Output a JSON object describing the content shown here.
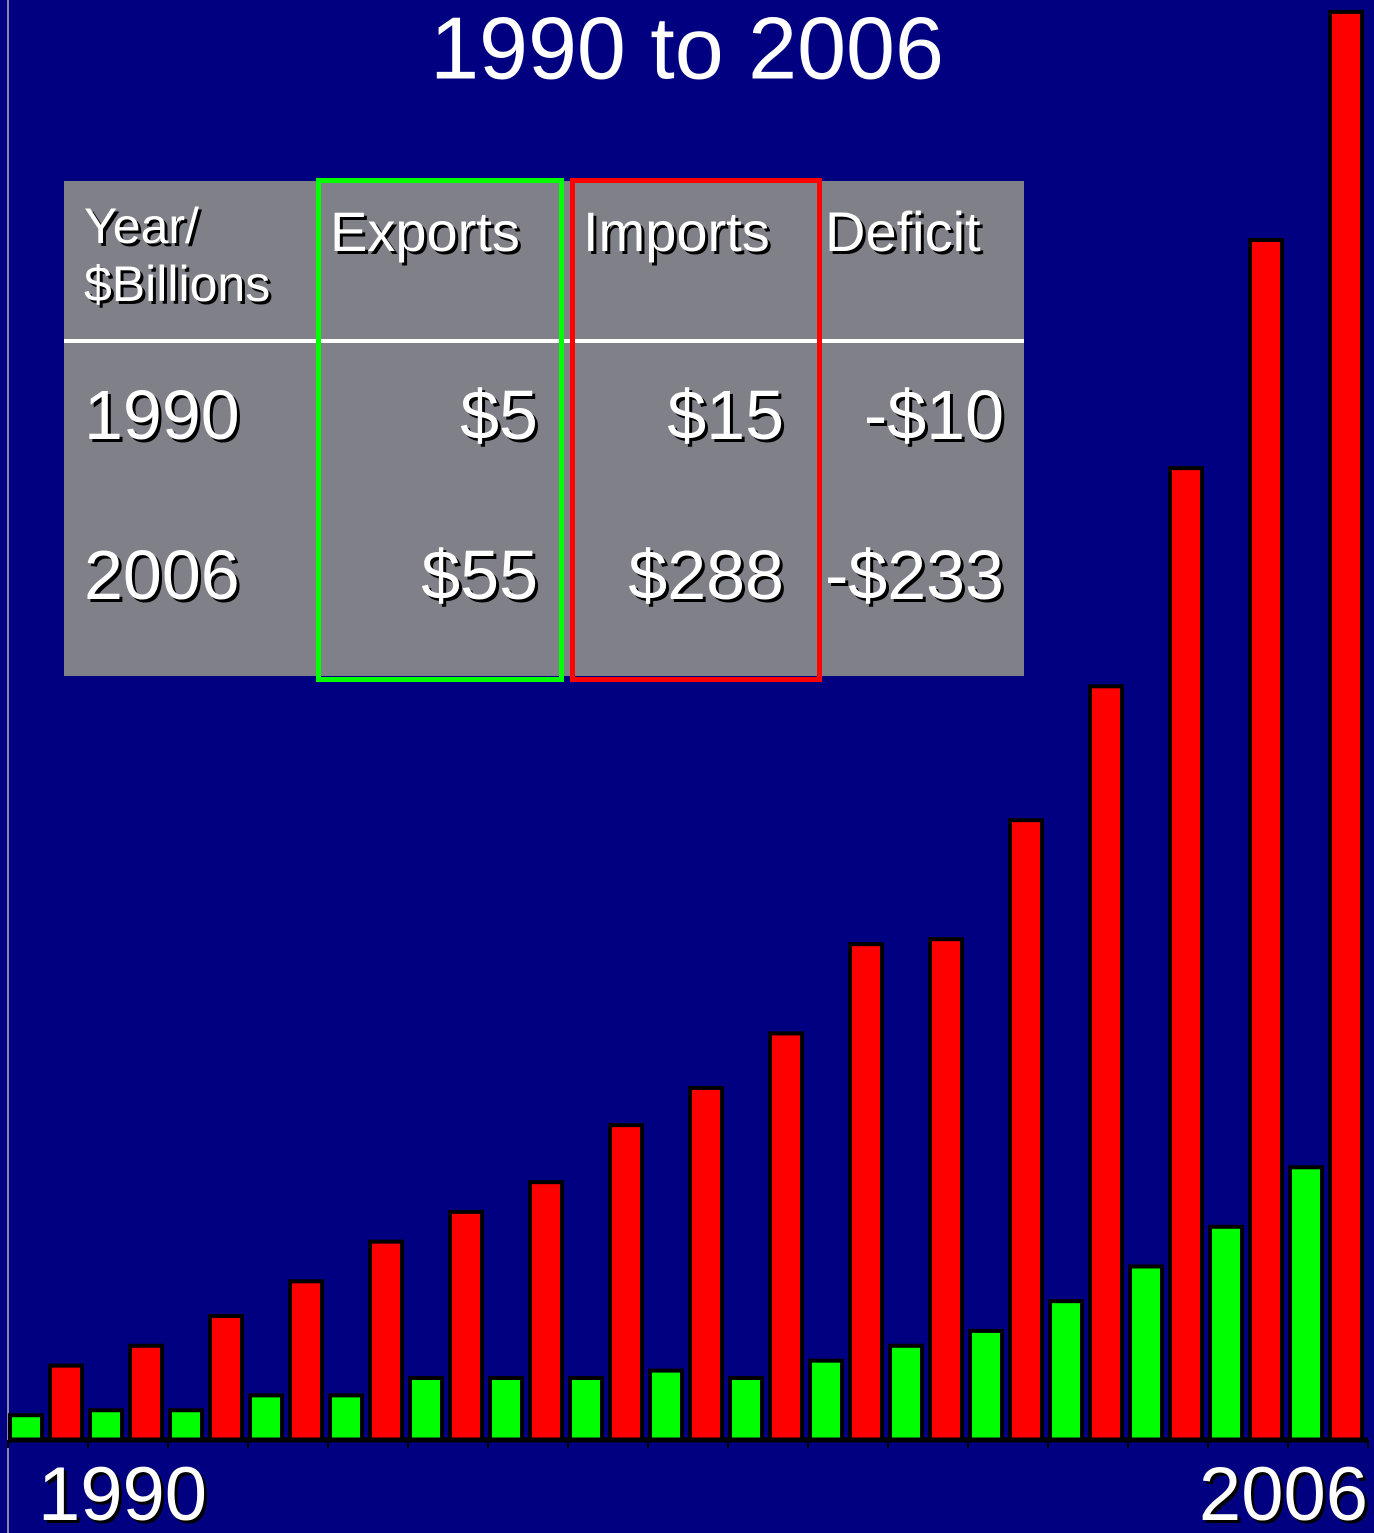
{
  "chart_data": {
    "type": "bar",
    "title": "1990 to 2006",
    "categories": [
      "1990",
      null,
      null,
      null,
      null,
      null,
      null,
      null,
      null,
      null,
      null,
      null,
      null,
      null,
      null,
      null,
      "2006"
    ],
    "series": [
      {
        "color": "#00ff00",
        "values": [
          5,
          6,
          6,
          9,
          9,
          12.5,
          12.5,
          12.5,
          14,
          12.5,
          16,
          19,
          22,
          28,
          35,
          43,
          55
        ]
      },
      {
        "color": "#ff0000",
        "values": [
          15,
          19,
          25,
          32,
          40,
          46,
          52,
          63.5,
          71,
          82,
          100,
          101,
          125,
          152,
          196,
          242,
          288
        ]
      }
    ],
    "ylim": [
      0,
      290
    ]
  },
  "table": {
    "header": [
      "Year/\n$Billions",
      "Exports",
      "Imports",
      "Deficit"
    ],
    "rows": [
      [
        "1990",
        "$5",
        "$15",
        "-$10"
      ],
      [
        "2006",
        "$55",
        "$288",
        "-$233"
      ]
    ]
  }
}
